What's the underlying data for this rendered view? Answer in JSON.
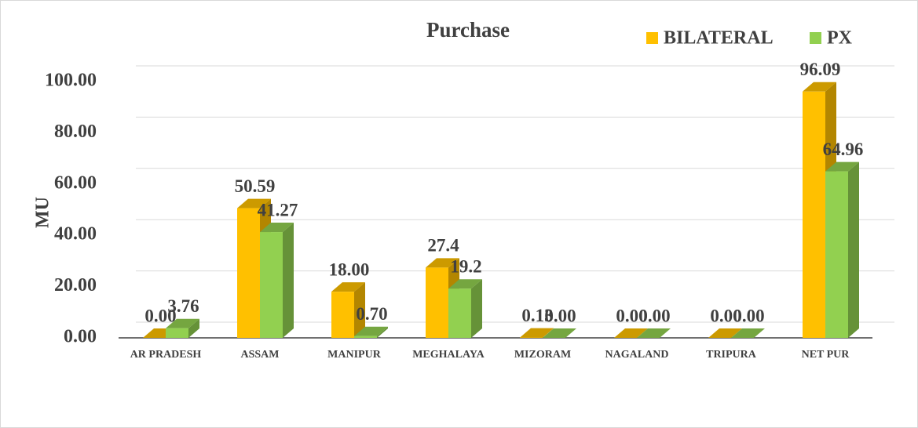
{
  "chart_data": {
    "type": "bar3d",
    "title": "Purchase",
    "y_label": "MU",
    "categories": [
      "AR PRADESH",
      "ASSAM",
      "MANIPUR",
      "MEGHALAYA",
      "MIZORAM",
      "NAGALAND",
      "TRIPURA",
      "NET PUR"
    ],
    "series": [
      {
        "name": "BILATERAL",
        "color": "#FFC000",
        "values": [
          0,
          50.59,
          18,
          27.4,
          0.13,
          0,
          0,
          96.09
        ],
        "value_labels": [
          "0.00",
          "50.59",
          "18.00",
          "27.4",
          "0.13",
          "0.00",
          "0.00",
          "96.09"
        ]
      },
      {
        "name": "PX",
        "color": "#92D050",
        "values": [
          3.76,
          41.27,
          0.7,
          19.2,
          0,
          0,
          0,
          64.96
        ],
        "value_labels": [
          "3.76",
          "41.27",
          "0.70",
          "19.2",
          "0.00",
          "0.00",
          "0.00",
          "64.96"
        ]
      }
    ],
    "ylim": [
      0,
      100
    ],
    "yticks": [
      {
        "value": 0,
        "label": "0.00"
      },
      {
        "value": 20,
        "label": "20.00"
      },
      {
        "value": 40,
        "label": "40.00"
      },
      {
        "value": 60,
        "label": "60.00"
      },
      {
        "value": 80,
        "label": "80.00"
      },
      {
        "value": 100,
        "label": "100.00"
      }
    ],
    "grid": true,
    "legend": "top-right"
  }
}
